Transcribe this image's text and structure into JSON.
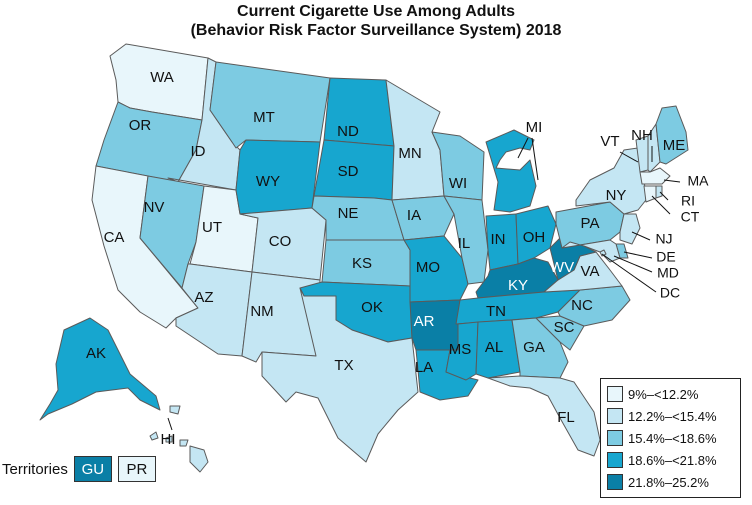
{
  "title": {
    "line1": "Current Cigarette Use Among Adults",
    "line2": "(Behavior Risk Factor Surveillance System) 2018"
  },
  "legend": [
    {
      "label": "9%–<12.2%",
      "color": "#e8f6fb"
    },
    {
      "label": "12.2%–<15.4%",
      "color": "#c4e6f3"
    },
    {
      "label": "15.4%–<18.6%",
      "color": "#7dcbe2"
    },
    {
      "label": "18.6%–<21.8%",
      "color": "#17a6cf"
    },
    {
      "label": "21.8%–25.2%",
      "color": "#0a7fa6"
    }
  ],
  "territories": {
    "label": "Territories",
    "items": [
      {
        "code": "GU",
        "bin": 4
      },
      {
        "code": "PR",
        "bin": 0
      }
    ]
  },
  "states": [
    {
      "code": "WA",
      "bin": 0
    },
    {
      "code": "OR",
      "bin": 2
    },
    {
      "code": "CA",
      "bin": 0
    },
    {
      "code": "ID",
      "bin": 1
    },
    {
      "code": "NV",
      "bin": 2
    },
    {
      "code": "UT",
      "bin": 0
    },
    {
      "code": "AZ",
      "bin": 1
    },
    {
      "code": "MT",
      "bin": 2
    },
    {
      "code": "WY",
      "bin": 3
    },
    {
      "code": "CO",
      "bin": 1
    },
    {
      "code": "NM",
      "bin": 1
    },
    {
      "code": "ND",
      "bin": 3
    },
    {
      "code": "SD",
      "bin": 3
    },
    {
      "code": "NE",
      "bin": 2
    },
    {
      "code": "KS",
      "bin": 2
    },
    {
      "code": "OK",
      "bin": 3
    },
    {
      "code": "TX",
      "bin": 1
    },
    {
      "code": "MN",
      "bin": 1
    },
    {
      "code": "IA",
      "bin": 2
    },
    {
      "code": "MO",
      "bin": 3
    },
    {
      "code": "AR",
      "bin": 4
    },
    {
      "code": "LA",
      "bin": 3
    },
    {
      "code": "WI",
      "bin": 2
    },
    {
      "code": "IL",
      "bin": 2
    },
    {
      "code": "MI",
      "bin": 3
    },
    {
      "code": "IN",
      "bin": 3
    },
    {
      "code": "OH",
      "bin": 3
    },
    {
      "code": "KY",
      "bin": 4
    },
    {
      "code": "TN",
      "bin": 3
    },
    {
      "code": "MS",
      "bin": 3
    },
    {
      "code": "AL",
      "bin": 3
    },
    {
      "code": "WV",
      "bin": 4
    },
    {
      "code": "VA",
      "bin": 1
    },
    {
      "code": "NC",
      "bin": 2
    },
    {
      "code": "SC",
      "bin": 2
    },
    {
      "code": "GA",
      "bin": 2
    },
    {
      "code": "FL",
      "bin": 1
    },
    {
      "code": "PA",
      "bin": 2
    },
    {
      "code": "NY",
      "bin": 1
    },
    {
      "code": "VT",
      "bin": 1
    },
    {
      "code": "NH",
      "bin": 1
    },
    {
      "code": "ME",
      "bin": 2
    },
    {
      "code": "MA",
      "bin": 0
    },
    {
      "code": "RI",
      "bin": 1
    },
    {
      "code": "CT",
      "bin": 0
    },
    {
      "code": "NJ",
      "bin": 1
    },
    {
      "code": "DE",
      "bin": 2
    },
    {
      "code": "MD",
      "bin": 1
    },
    {
      "code": "DC",
      "bin": 1
    },
    {
      "code": "AK",
      "bin": 3
    },
    {
      "code": "HI",
      "bin": 1
    }
  ]
}
